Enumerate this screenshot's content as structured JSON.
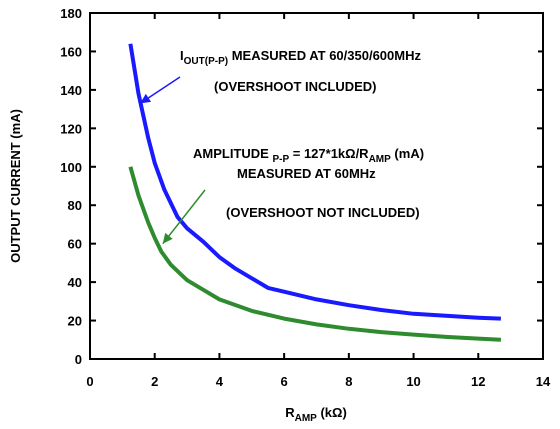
{
  "chart_data": {
    "type": "line",
    "title": "",
    "xlabel": {
      "main": "R",
      "sub": "AMP",
      "suffix": " (kΩ)"
    },
    "ylabel": "OUTPUT CURRENT (mA)",
    "xlim": [
      0,
      14
    ],
    "ylim": [
      0,
      180
    ],
    "xticks": [
      0,
      2,
      4,
      6,
      8,
      10,
      12,
      14
    ],
    "yticks": [
      0,
      20,
      40,
      60,
      80,
      100,
      120,
      140,
      160,
      180
    ],
    "grid": false,
    "series": [
      {
        "color": "#1a1aff",
        "x": [
          1.25,
          1.5,
          1.8,
          2.0,
          2.3,
          2.7,
          3.0,
          3.5,
          4.0,
          4.5,
          5.0,
          5.5,
          6.0,
          7.0,
          8.0,
          9.0,
          10.0,
          11.0,
          12.0,
          12.7
        ],
        "y": [
          164,
          138,
          115,
          102,
          88,
          74,
          68,
          61,
          53,
          47,
          42,
          37,
          35,
          31,
          28,
          25.5,
          23.5,
          22.5,
          21.5,
          21
        ]
      },
      {
        "color": "#2e8b2e",
        "x": [
          1.25,
          1.5,
          1.8,
          2.0,
          2.2,
          2.5,
          3.0,
          3.5,
          4.0,
          5.0,
          6.0,
          7.0,
          8.0,
          9.0,
          10.0,
          11.0,
          12.0,
          12.7
        ],
        "y": [
          100,
          85,
          71,
          63,
          56,
          49,
          41,
          36,
          31,
          25,
          21,
          18,
          15.7,
          14,
          12.7,
          11.5,
          10.6,
          10
        ]
      }
    ],
    "annotations": [
      {
        "id": "a1",
        "parts": [
          {
            "t": "I"
          },
          {
            "t": "OUT(P-P)",
            "sub": true
          },
          {
            "t": " MEASURED AT 60/350/600MHz"
          }
        ]
      },
      {
        "id": "a2",
        "parts": [
          {
            "t": "(OVERSHOOT INCLUDED)"
          }
        ]
      },
      {
        "id": "a3",
        "parts": [
          {
            "t": "AMPLITUDE "
          },
          {
            "t": "P-P",
            "sub": true
          },
          {
            "t": " = 127*1kΩ/R"
          },
          {
            "t": "AMP",
            "sub": true
          },
          {
            "t": " (mA)"
          }
        ]
      },
      {
        "id": "a4",
        "parts": [
          {
            "t": "MEASURED AT 60MHz"
          }
        ]
      },
      {
        "id": "a5",
        "parts": [
          {
            "t": "(OVERSHOOT NOT INCLUDED)"
          }
        ]
      }
    ]
  }
}
